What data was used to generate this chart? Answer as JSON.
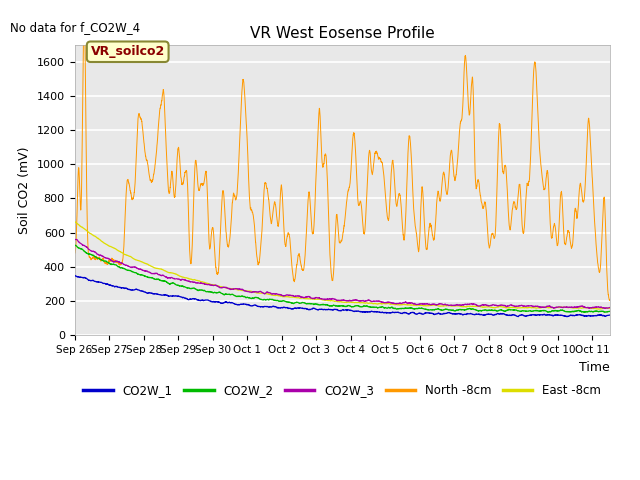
{
  "title": "VR West Eosense Profile",
  "top_left_text": "No data for f_CO2W_4",
  "annotation_text": "VR_soilco2",
  "ylabel": "Soil CO2 (mV)",
  "xlabel": "Time",
  "xlim_days": [
    0,
    15.5
  ],
  "ylim": [
    0,
    1700
  ],
  "yticks": [
    0,
    200,
    400,
    600,
    800,
    1000,
    1200,
    1400,
    1600
  ],
  "xtick_labels": [
    "Sep 26",
    "Sep 27",
    "Sep 28",
    "Sep 29",
    "Sep 30",
    "Oct 1",
    "Oct 2",
    "Oct 3",
    "Oct 4",
    "Oct 5",
    "Oct 6",
    "Oct 7",
    "Oct 8",
    "Oct 9",
    "Oct 10",
    "Oct 11"
  ],
  "xtick_positions": [
    0,
    1,
    2,
    3,
    4,
    5,
    6,
    7,
    8,
    9,
    10,
    11,
    12,
    13,
    14,
    15
  ],
  "colors": {
    "CO2W_1": "#0000cc",
    "CO2W_2": "#00bb00",
    "CO2W_3": "#aa00aa",
    "North_8cm": "#ff9900",
    "East_8cm": "#dddd00",
    "annotation_bg": "#ffffcc",
    "annotation_border": "#888833"
  },
  "legend_labels": [
    "CO2W_1",
    "CO2W_2",
    "CO2W_3",
    "North -8cm",
    "East -8cm"
  ],
  "plot_bg_color": "#e8e8e8"
}
